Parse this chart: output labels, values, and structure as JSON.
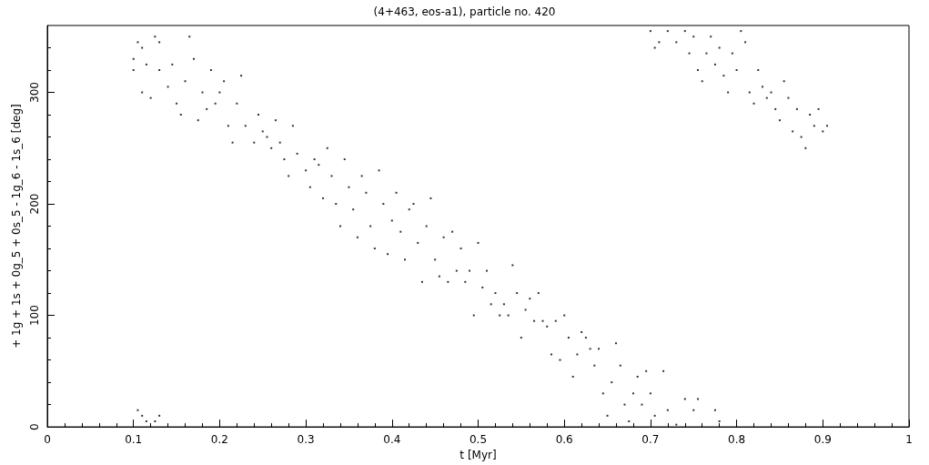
{
  "chart_data": {
    "type": "scatter",
    "title": "(4+463, eos-a1), particle no. 420",
    "xlabel": "t [Myr]",
    "ylabel": "+ 1g + 1s + 0g_5 + 0s_5 - 1g_6 - 1s_6 [deg]",
    "xlim": [
      0,
      1
    ],
    "xticks": [
      0,
      0.1,
      0.2,
      0.3,
      0.4,
      0.5,
      0.6,
      0.7,
      0.8,
      0.9,
      1
    ],
    "ylim": [
      0,
      360
    ],
    "yticks": [
      0,
      100,
      200,
      300
    ],
    "grid": false,
    "marker": "square",
    "series": [
      {
        "color": "#000000",
        "x": [
          0.1,
          0.1,
          0.105,
          0.11,
          0.11,
          0.115,
          0.12,
          0.125,
          0.13,
          0.13,
          0.14,
          0.145,
          0.15,
          0.155,
          0.16,
          0.165,
          0.17,
          0.175,
          0.18,
          0.185,
          0.19,
          0.195,
          0.2,
          0.205,
          0.21,
          0.215,
          0.22,
          0.225,
          0.23,
          0.24,
          0.245,
          0.25,
          0.255,
          0.26,
          0.265,
          0.27,
          0.275,
          0.28,
          0.285,
          0.29,
          0.3,
          0.305,
          0.31,
          0.315,
          0.32,
          0.325,
          0.33,
          0.335,
          0.34,
          0.345,
          0.35,
          0.355,
          0.36,
          0.365,
          0.37,
          0.375,
          0.38,
          0.385,
          0.39,
          0.395,
          0.4,
          0.405,
          0.41,
          0.415,
          0.42,
          0.425,
          0.43,
          0.435,
          0.44,
          0.445,
          0.45,
          0.455,
          0.46,
          0.465,
          0.47,
          0.475,
          0.48,
          0.485,
          0.49,
          0.495,
          0.5,
          0.505,
          0.51,
          0.515,
          0.52,
          0.525,
          0.53,
          0.535,
          0.54,
          0.545,
          0.55,
          0.555,
          0.56,
          0.565,
          0.57,
          0.575,
          0.58,
          0.585,
          0.59,
          0.595,
          0.6,
          0.605,
          0.61,
          0.615,
          0.62,
          0.625,
          0.63,
          0.635,
          0.64,
          0.645,
          0.65,
          0.655,
          0.66,
          0.665,
          0.67,
          0.675,
          0.68,
          0.685,
          0.69,
          0.695,
          0.7,
          0.705,
          0.715,
          0.72,
          0.73,
          0.74,
          0.75,
          0.755,
          0.775,
          0.78,
          0.105,
          0.11,
          0.115,
          0.125,
          0.13,
          0.7,
          0.705,
          0.71,
          0.72,
          0.73,
          0.74,
          0.745,
          0.75,
          0.755,
          0.76,
          0.765,
          0.77,
          0.775,
          0.78,
          0.785,
          0.79,
          0.795,
          0.8,
          0.805,
          0.81,
          0.815,
          0.82,
          0.825,
          0.83,
          0.835,
          0.84,
          0.845,
          0.85,
          0.855,
          0.86,
          0.865,
          0.87,
          0.875,
          0.88,
          0.885,
          0.89,
          0.895,
          0.9,
          0.905
        ],
        "values": [
          320,
          330,
          345,
          300,
          340,
          325,
          295,
          350,
          345,
          320,
          305,
          325,
          290,
          280,
          310,
          350,
          330,
          275,
          300,
          285,
          320,
          290,
          300,
          310,
          270,
          255,
          290,
          315,
          270,
          255,
          280,
          265,
          260,
          250,
          275,
          255,
          240,
          225,
          270,
          245,
          230,
          215,
          240,
          235,
          205,
          250,
          225,
          200,
          180,
          240,
          215,
          195,
          170,
          225,
          210,
          180,
          160,
          230,
          200,
          155,
          185,
          210,
          175,
          150,
          195,
          200,
          165,
          130,
          180,
          205,
          150,
          135,
          170,
          130,
          175,
          140,
          160,
          130,
          140,
          100,
          165,
          125,
          140,
          110,
          120,
          100,
          110,
          100,
          145,
          120,
          80,
          105,
          115,
          95,
          120,
          95,
          90,
          65,
          95,
          60,
          100,
          80,
          45,
          65,
          85,
          80,
          70,
          55,
          70,
          30,
          10,
          40,
          75,
          55,
          20,
          5,
          30,
          45,
          20,
          50,
          30,
          10,
          50,
          15,
          2,
          25,
          15,
          25,
          15,
          5,
          15,
          10,
          5,
          5,
          10,
          355,
          340,
          345,
          355,
          345,
          355,
          335,
          350,
          320,
          310,
          335,
          350,
          325,
          340,
          315,
          300,
          335,
          320,
          355,
          345,
          300,
          290,
          320,
          305,
          295,
          300,
          285,
          275,
          310,
          295,
          265,
          285,
          260,
          250,
          280,
          270,
          285,
          265,
          270
        ]
      }
    ]
  }
}
